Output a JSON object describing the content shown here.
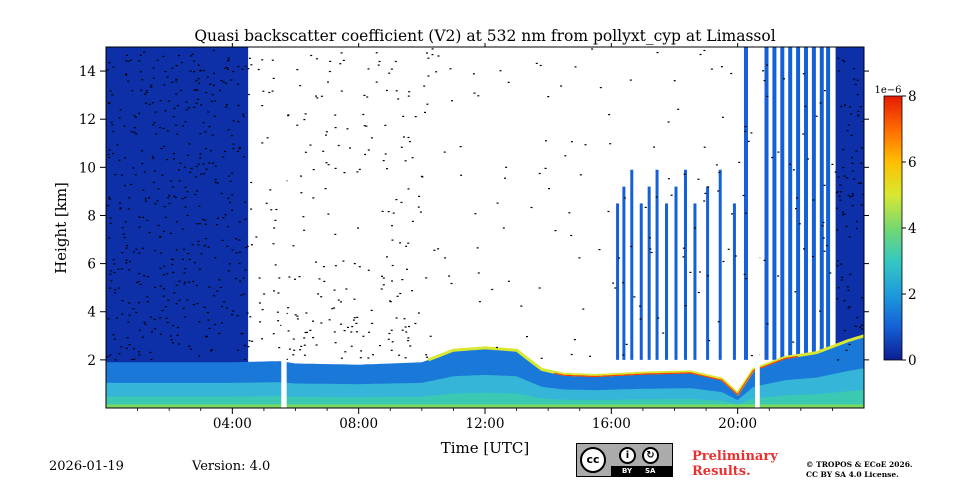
{
  "chart_data": {
    "type": "heatmap",
    "title": "Quasi backscatter coefficient (V2) at 532 nm from pollyxt_cyp at Limassol",
    "xlabel": "Time [UTC]",
    "ylabel": "Height [km]",
    "xlim": [
      0,
      24
    ],
    "ylim": [
      0,
      15
    ],
    "x_ticks": [
      {
        "value": 4,
        "label": "04:00"
      },
      {
        "value": 8,
        "label": "08:00"
      },
      {
        "value": 12,
        "label": "12:00"
      },
      {
        "value": 16,
        "label": "16:00"
      },
      {
        "value": 20,
        "label": "20:00"
      }
    ],
    "y_ticks": [
      {
        "value": 2,
        "label": "2"
      },
      {
        "value": 4,
        "label": "4"
      },
      {
        "value": 6,
        "label": "6"
      },
      {
        "value": 8,
        "label": "8"
      },
      {
        "value": 10,
        "label": "10"
      },
      {
        "value": 12,
        "label": "12"
      },
      {
        "value": 14,
        "label": "14"
      }
    ],
    "colorbar": {
      "min": 0,
      "max": 8,
      "exponent_label": "1e−6",
      "ticks": [
        {
          "value": 0,
          "label": "0"
        },
        {
          "value": 2,
          "label": "2"
        },
        {
          "value": 4,
          "label": "4"
        },
        {
          "value": 6,
          "label": "6"
        },
        {
          "value": 8,
          "label": "8"
        }
      ],
      "colormap": [
        "#0b1e8f",
        "#1560d6",
        "#1e9bdb",
        "#35c8c0",
        "#75d870",
        "#d8e832",
        "#ffbf00",
        "#ff6a00",
        "#e61b00"
      ]
    },
    "data_gaps_hours": [
      [
        5.55,
        5.72
      ],
      [
        20.55,
        20.7
      ]
    ],
    "blue_columns_hours": [
      16.15,
      16.35,
      16.6,
      16.9,
      17.15,
      17.4,
      17.7,
      18.0,
      18.3,
      18.6,
      19.0,
      19.4,
      19.85,
      20.2,
      20.85,
      21.1,
      21.35,
      21.6,
      21.85,
      22.1,
      22.35,
      22.6,
      22.8
    ],
    "boundary_layer_km": [
      [
        0,
        1.9
      ],
      [
        4,
        1.9
      ],
      [
        5.5,
        1.95
      ],
      [
        6,
        1.85
      ],
      [
        8,
        1.8
      ],
      [
        10,
        1.9
      ],
      [
        11,
        2.4
      ],
      [
        12,
        2.5
      ],
      [
        13,
        2.4
      ],
      [
        13.8,
        1.6
      ],
      [
        14.5,
        1.4
      ],
      [
        15.5,
        1.35
      ],
      [
        17,
        1.45
      ],
      [
        18.5,
        1.5
      ],
      [
        19.5,
        1.2
      ],
      [
        20,
        0.6
      ],
      [
        20.5,
        1.6
      ],
      [
        21.5,
        2.1
      ],
      [
        22.5,
        2.3
      ],
      [
        23.5,
        2.8
      ],
      [
        24,
        3.0
      ]
    ]
  },
  "footer": {
    "date": "2026-01-19",
    "version": "Version: 4.0",
    "license_cc": "cc",
    "license_by": "BY",
    "license_sa": "SA",
    "preliminary_line1": "Preliminary",
    "preliminary_line2": "Results.",
    "copyright_line1": "© TROPOS & ECoE 2026.",
    "copyright_line2": "CC BY SA 4.0 License."
  }
}
